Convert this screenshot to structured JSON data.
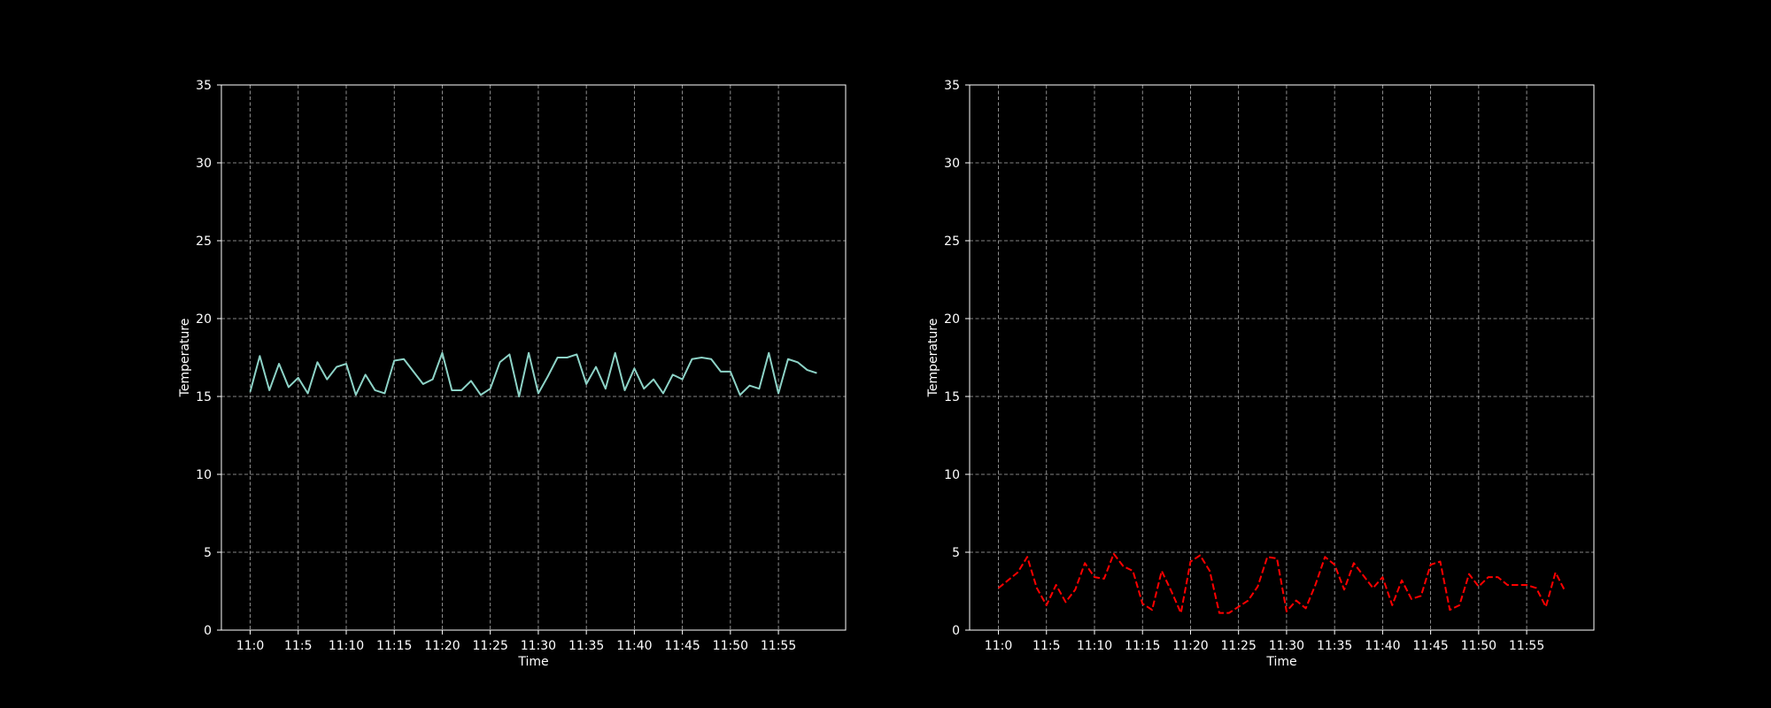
{
  "figure": {
    "background": "#000000"
  },
  "chart_data": [
    {
      "type": "line",
      "title": "",
      "xlabel": "Time",
      "ylabel": "Temperature",
      "ylim": [
        0,
        35
      ],
      "yticks": [
        0,
        5,
        10,
        15,
        20,
        25,
        30,
        35
      ],
      "xlim": [
        -3,
        62
      ],
      "xticks": [
        0,
        5,
        10,
        15,
        20,
        25,
        30,
        35,
        40,
        45,
        50,
        55
      ],
      "xticklabels": [
        "11:0",
        "11:5",
        "11:10",
        "11:15",
        "11:20",
        "11:25",
        "11:30",
        "11:35",
        "11:40",
        "11:45",
        "11:50",
        "11:55"
      ],
      "grid": true,
      "grid_color": "#b0b0b0",
      "series": [
        {
          "color": "#8dd3c7",
          "line_style": "solid",
          "x": [
            0,
            1,
            2,
            3,
            4,
            5,
            6,
            7,
            8,
            9,
            10,
            11,
            12,
            13,
            14,
            15,
            16,
            17,
            18,
            19,
            20,
            21,
            22,
            23,
            24,
            25,
            26,
            27,
            28,
            29,
            30,
            31,
            32,
            33,
            34,
            35,
            36,
            37,
            38,
            39,
            40,
            41,
            42,
            43,
            44,
            45,
            46,
            47,
            48,
            49,
            50,
            51,
            52,
            53,
            54,
            55,
            56,
            57,
            58,
            59
          ],
          "values": [
            15.3,
            17.6,
            15.4,
            17.1,
            15.6,
            16.2,
            15.2,
            17.2,
            16.1,
            16.9,
            17.1,
            15.1,
            16.4,
            15.4,
            15.2,
            17.3,
            17.4,
            16.6,
            15.8,
            16.1,
            17.8,
            15.4,
            15.4,
            16.0,
            15.1,
            15.5,
            17.2,
            17.7,
            15.0,
            17.8,
            15.2,
            16.3,
            17.5,
            17.5,
            17.7,
            15.8,
            16.9,
            15.5,
            17.8,
            15.4,
            16.8,
            15.5,
            16.1,
            15.2,
            16.4,
            16.1,
            17.4,
            17.5,
            17.4,
            16.6,
            16.6,
            15.1,
            15.7,
            15.5,
            17.8,
            15.2,
            17.4,
            17.2,
            16.7,
            16.5
          ]
        }
      ]
    },
    {
      "type": "line",
      "title": "",
      "xlabel": "Time",
      "ylabel": "Temperature",
      "ylim": [
        0,
        35
      ],
      "yticks": [
        0,
        5,
        10,
        15,
        20,
        25,
        30,
        35
      ],
      "xlim": [
        -3,
        62
      ],
      "xticks": [
        0,
        5,
        10,
        15,
        20,
        25,
        30,
        35,
        40,
        45,
        50,
        55
      ],
      "xticklabels": [
        "11:0",
        "11:5",
        "11:10",
        "11:15",
        "11:20",
        "11:25",
        "11:30",
        "11:35",
        "11:40",
        "11:45",
        "11:50",
        "11:55"
      ],
      "grid": true,
      "grid_color": "#b0b0b0",
      "series": [
        {
          "color": "#ff0000",
          "line_style": "dashed",
          "x": [
            0,
            1,
            2,
            3,
            4,
            5,
            6,
            7,
            8,
            9,
            10,
            11,
            12,
            13,
            14,
            15,
            16,
            17,
            18,
            19,
            20,
            21,
            22,
            23,
            24,
            25,
            26,
            27,
            28,
            29,
            30,
            31,
            32,
            33,
            34,
            35,
            36,
            37,
            38,
            39,
            40,
            41,
            42,
            43,
            44,
            45,
            46,
            47,
            48,
            49,
            50,
            51,
            52,
            53,
            54,
            55,
            56,
            57,
            58,
            59
          ],
          "values": [
            2.7,
            3.2,
            3.7,
            4.7,
            2.7,
            1.6,
            2.9,
            1.8,
            2.6,
            4.3,
            3.4,
            3.3,
            4.9,
            4.1,
            3.8,
            1.7,
            1.3,
            3.8,
            2.5,
            1.1,
            4.4,
            4.8,
            3.8,
            1.1,
            1.1,
            1.5,
            1.9,
            2.8,
            4.7,
            4.6,
            1.2,
            1.9,
            1.4,
            2.9,
            4.7,
            4.2,
            2.6,
            4.3,
            3.5,
            2.7,
            3.4,
            1.6,
            3.2,
            2.0,
            2.2,
            4.2,
            4.4,
            1.3,
            1.6,
            3.6,
            2.8,
            3.4,
            3.4,
            2.9,
            2.9,
            2.9,
            2.7,
            1.5,
            3.7,
            2.5
          ]
        }
      ]
    }
  ]
}
